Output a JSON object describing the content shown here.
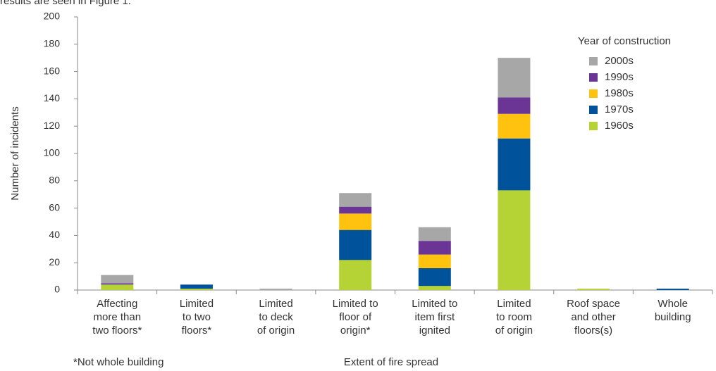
{
  "intro_text": "results are seen in Figure 1.",
  "chart_data": {
    "type": "stacked_bar",
    "x_label": "Extent of fire spread",
    "y_label": "Number of incidents",
    "footnote": "*Not whole building",
    "legend_title": "Year of construction",
    "legend_position": "upper right",
    "categories": [
      "Affecting\nmore than\ntwo floors*",
      "Limited\nto two\nfloors*",
      "Limited\nto deck\nof origin",
      "Limited to\nfloor of\norigin*",
      "Limited to\nitem first\nignited",
      "Limited\nto room\nof origin",
      "Roof space\nand other\nfloors(s)",
      "Whole\nbuilding"
    ],
    "series": [
      {
        "name": "1960s",
        "color": "#b5d334",
        "values": [
          4,
          1,
          0,
          22,
          3,
          73,
          1,
          0
        ]
      },
      {
        "name": "1970s",
        "color": "#00529b",
        "values": [
          0,
          3,
          0,
          22,
          13,
          38,
          0,
          1
        ]
      },
      {
        "name": "1980s",
        "color": "#ffc20e",
        "values": [
          0,
          0,
          0,
          12,
          10,
          18,
          0,
          0
        ]
      },
      {
        "name": "1990s",
        "color": "#6a3594",
        "values": [
          1,
          0,
          0,
          5,
          10,
          12,
          0,
          0
        ]
      },
      {
        "name": "2000s",
        "color": "#a7a7a7",
        "values": [
          6,
          0,
          1,
          10,
          10,
          29,
          0,
          0
        ]
      }
    ],
    "ylim": [
      0,
      200
    ],
    "yticks": [
      0,
      20,
      40,
      60,
      80,
      100,
      120,
      140,
      160,
      180,
      200
    ],
    "grid": false
  }
}
